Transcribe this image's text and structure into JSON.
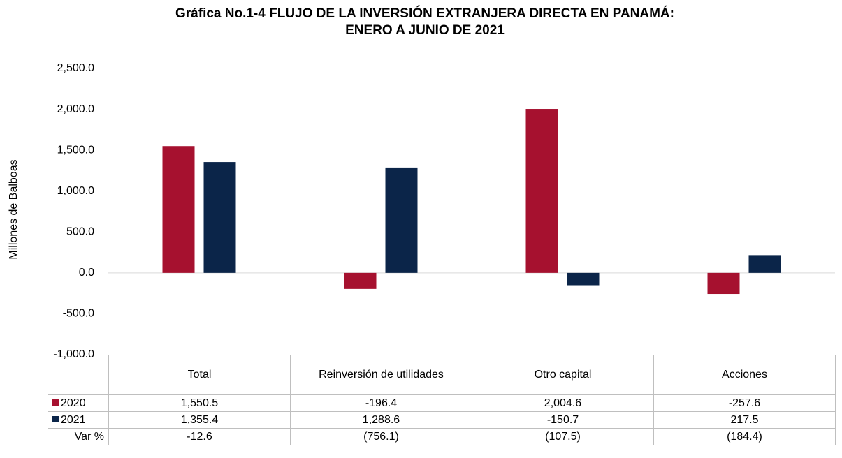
{
  "chart_data": {
    "type": "bar",
    "title": [
      "Gráfica No.1-4 FLUJO DE LA INVERSIÓN EXTRANJERA DIRECTA EN PANAMÁ:",
      "ENERO A JUNIO DE 2021"
    ],
    "ylabel": "Millones de Balboas",
    "categories": [
      "Total",
      "Reinversión de utilidades",
      "Otro capital",
      "Acciones"
    ],
    "series": [
      {
        "name": "2020",
        "color": "#a6112f",
        "values": [
          1550.5,
          -196.4,
          2004.6,
          -257.6
        ],
        "value_labels": [
          "1,550.5",
          "-196.4",
          "2,004.6",
          "-257.6"
        ]
      },
      {
        "name": "2021",
        "color": "#0b2549",
        "values": [
          1355.4,
          1288.6,
          -150.7,
          217.5
        ],
        "value_labels": [
          "1,355.4",
          "1,288.6",
          "-150.7",
          "217.5"
        ]
      }
    ],
    "var": {
      "name": "Var %",
      "values": [
        "-12.6",
        "(756.1)",
        "(107.5)",
        "(184.4)"
      ]
    },
    "ylim": [
      -1000,
      2500
    ],
    "yticks": [
      {
        "value": -1000,
        "label": "-1,000.0"
      },
      {
        "value": -500,
        "label": "-500.0"
      },
      {
        "value": 0,
        "label": "0.0"
      },
      {
        "value": 500,
        "label": "500.0"
      },
      {
        "value": 1000,
        "label": "1,000.0"
      },
      {
        "value": 1500,
        "label": "1,500.0"
      },
      {
        "value": 2000,
        "label": "2,000.0"
      },
      {
        "value": 2500,
        "label": "2,500.0"
      }
    ],
    "grid": false
  }
}
